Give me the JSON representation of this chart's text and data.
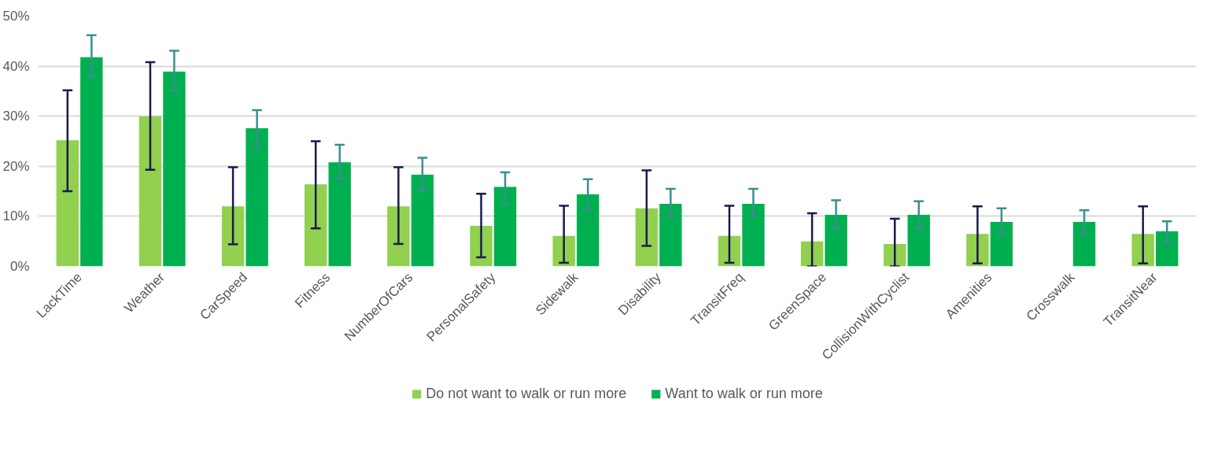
{
  "chart_data": {
    "type": "bar",
    "categories": [
      "LackTime",
      "Weather",
      "CarSpeed",
      "Fitness",
      "NumberOfCars",
      "PersonalSafety",
      "Sidewalk",
      "Disability",
      "TransitFreq",
      "GreenSpace",
      "CollisionWithCyclist",
      "Amenities",
      "Crosswalk",
      "TransitNear"
    ],
    "series": [
      {
        "name": "Do not want to walk or run more",
        "color": "#92d050",
        "values": [
          25.2,
          30,
          12,
          16.4,
          12,
          8.1,
          6.1,
          11.6,
          6.1,
          5.0,
          4.5,
          6.5,
          null,
          6.5
        ],
        "errors": [
          [
            15,
            35.2
          ],
          [
            19.3,
            40.8
          ],
          [
            4.4,
            19.8
          ],
          [
            7.6,
            25
          ],
          [
            4.5,
            19.8
          ],
          [
            1.8,
            14.5
          ],
          [
            0.7,
            12.1
          ],
          [
            4.1,
            19.2
          ],
          [
            0.7,
            12.1
          ],
          [
            0,
            10.6
          ],
          [
            0,
            9.5
          ],
          [
            0.6,
            12.0
          ],
          null,
          [
            0.6,
            12.0
          ]
        ]
      },
      {
        "name": "Want to walk or run more",
        "color": "#00b050",
        "values": [
          41.8,
          38.9,
          27.6,
          20.8,
          18.3,
          15.9,
          14.4,
          12.5,
          12.5,
          10.3,
          10.3,
          8.9,
          8.9,
          7.0
        ],
        "errors": [
          [
            38,
            46.2
          ],
          [
            35.2,
            43.1
          ],
          [
            23.8,
            31.2
          ],
          [
            17.5,
            24.3
          ],
          [
            15.2,
            21.7
          ],
          [
            12.6,
            18.8
          ],
          [
            11.3,
            17.4
          ],
          [
            9.9,
            15.5
          ],
          [
            9.9,
            15.5
          ],
          [
            7.6,
            13.2
          ],
          [
            7.6,
            13.0
          ],
          [
            6.6,
            11.6
          ],
          [
            6.5,
            11.2
          ],
          [
            4.8,
            9.0
          ]
        ]
      }
    ],
    "ylim": [
      0,
      50
    ],
    "yticks": [
      {
        "value": 0,
        "label": "0%"
      },
      {
        "value": 10,
        "label": "10%"
      },
      {
        "value": 20,
        "label": "20%"
      },
      {
        "value": 30,
        "label": "30%"
      },
      {
        "value": 40,
        "label": "40%"
      },
      {
        "value": 50,
        "label": "50%"
      }
    ],
    "grid": "y",
    "legend": "bottom"
  }
}
